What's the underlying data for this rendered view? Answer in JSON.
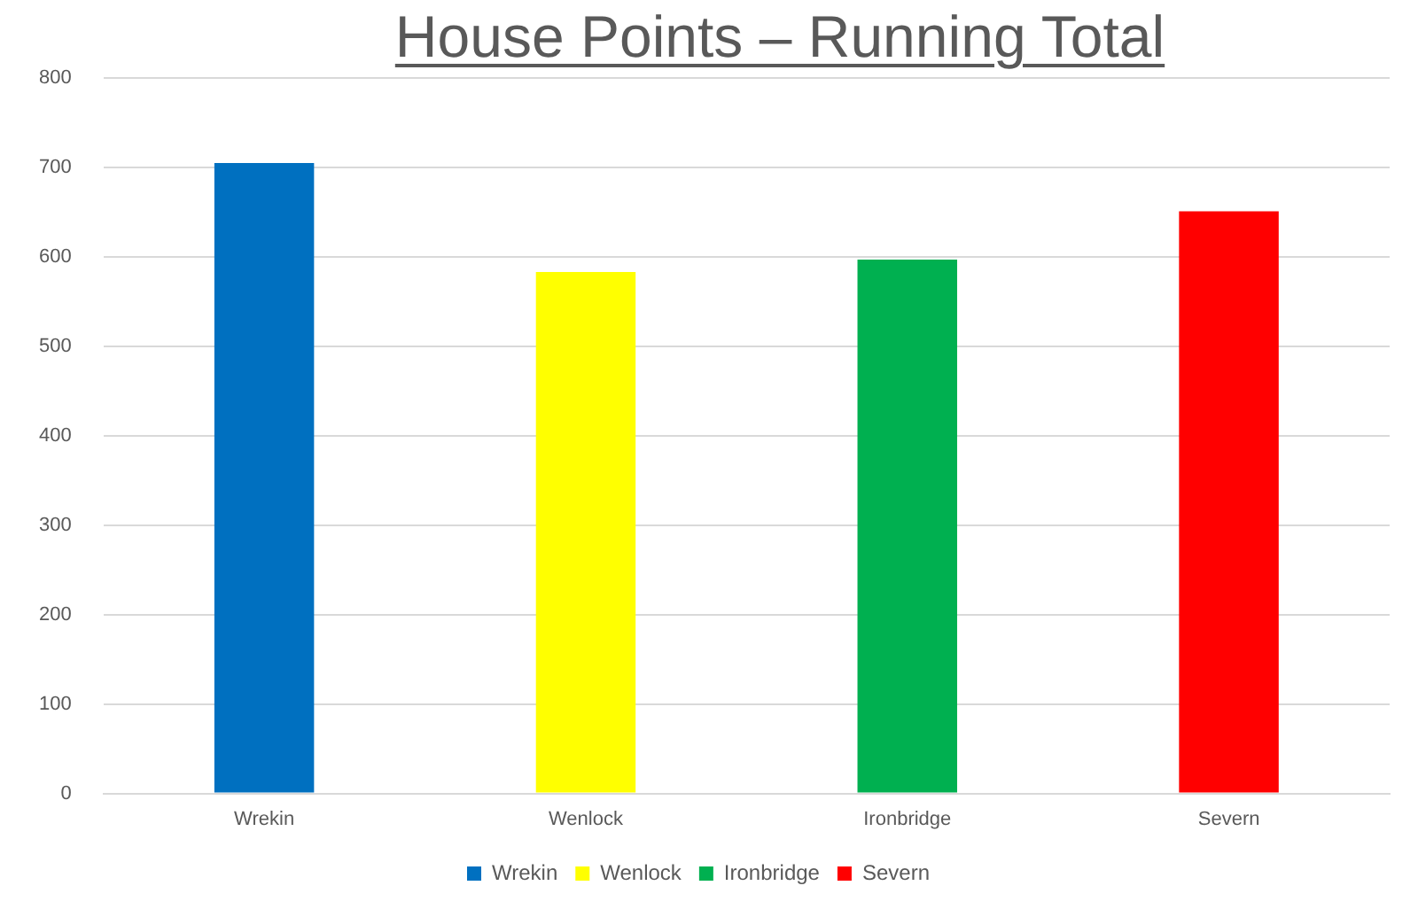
{
  "chart_data": {
    "type": "bar",
    "title": "House Points – Running Total",
    "categories": [
      "Wrekin",
      "Wenlock",
      "Ironbridge",
      "Severn"
    ],
    "series": [
      {
        "name": "Wrekin",
        "color": "#0070c0",
        "values": [
          705,
          null,
          null,
          null
        ]
      },
      {
        "name": "Wenlock",
        "color": "#ffff00",
        "values": [
          null,
          583,
          null,
          null
        ]
      },
      {
        "name": "Ironbridge",
        "color": "#00b050",
        "values": [
          null,
          null,
          597,
          null
        ]
      },
      {
        "name": "Severn",
        "color": "#ff0000",
        "values": [
          null,
          null,
          null,
          651
        ]
      }
    ],
    "ylim": [
      0,
      800
    ],
    "yticks": [
      0,
      100,
      200,
      300,
      400,
      500,
      600,
      700,
      800
    ],
    "grid": "y",
    "legend": "bottom"
  }
}
